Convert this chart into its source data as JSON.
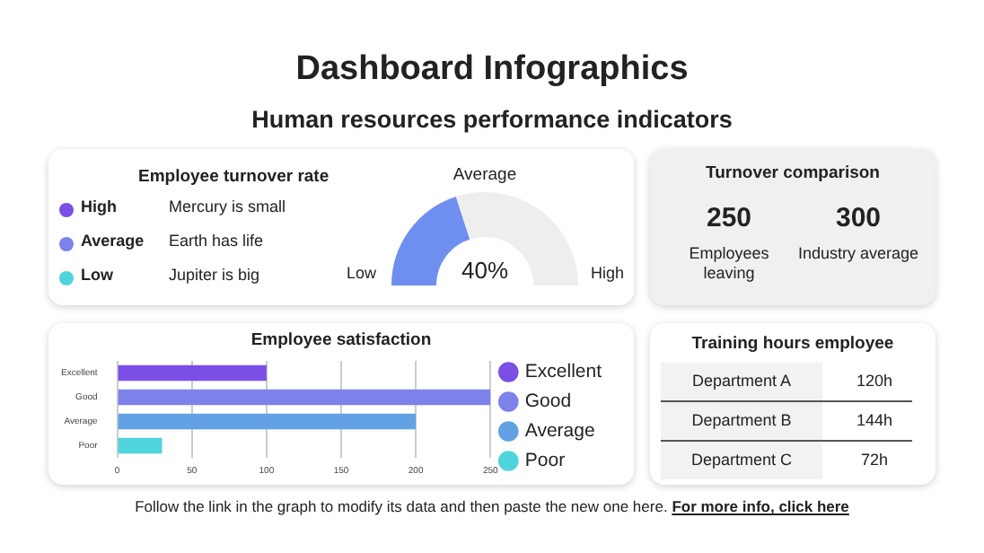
{
  "chart_data": [
    {
      "type": "other",
      "title": "Dashboard Infographics",
      "subtitle": "Human resources performance indicators",
      "annotations": [
        "Follow the link in the graph to modify its data and then paste the new one here.",
        "For more info, click here"
      ]
    },
    {
      "type": "other",
      "title": "Employee turnover rate",
      "annotations": [
        "High",
        "Mercury is small",
        "Average",
        "Earth has life",
        "Low",
        "Jupiter is big"
      ]
    },
    {
      "type": "donut",
      "title": "Average",
      "categories": [
        null,
        null
      ],
      "values": [
        40,
        60
      ],
      "colors": [
        "#6f8ff0",
        "#eeeeee"
      ],
      "annotations": [
        "Low",
        "40%",
        "High"
      ]
    },
    {
      "type": "other",
      "title": "Turnover comparison",
      "annotations": [
        "250",
        "Employees leaving",
        "300",
        "Industry average"
      ]
    },
    {
      "type": "bar",
      "orientation": "horizontal",
      "stacked": true,
      "title": "Employee satisfaction",
      "categories": [
        "Excellent",
        "Good",
        "Average",
        "Poor"
      ],
      "series": [
        {
          "name": "Excellent",
          "color": "#7b4fe6",
          "values": [
            100,
            null,
            null,
            null
          ]
        },
        {
          "name": "Good",
          "color": "#7d82ea",
          "values": [
            null,
            250,
            null,
            null
          ]
        },
        {
          "name": "Average",
          "color": "#62a2e4",
          "values": [
            null,
            null,
            200,
            null
          ]
        },
        {
          "name": "Poor",
          "color": "#4fd3dc",
          "values": [
            null,
            null,
            null,
            30
          ]
        }
      ],
      "xlim": [
        0,
        250
      ],
      "xticks": [
        0,
        50,
        100,
        150,
        200,
        250
      ],
      "grid": "x",
      "legend": "right"
    },
    {
      "type": "other",
      "title": "Training hours employee",
      "annotations": [
        "Department A",
        "120h",
        "Department B",
        "144h",
        "Department C",
        "72h"
      ]
    }
  ]
}
